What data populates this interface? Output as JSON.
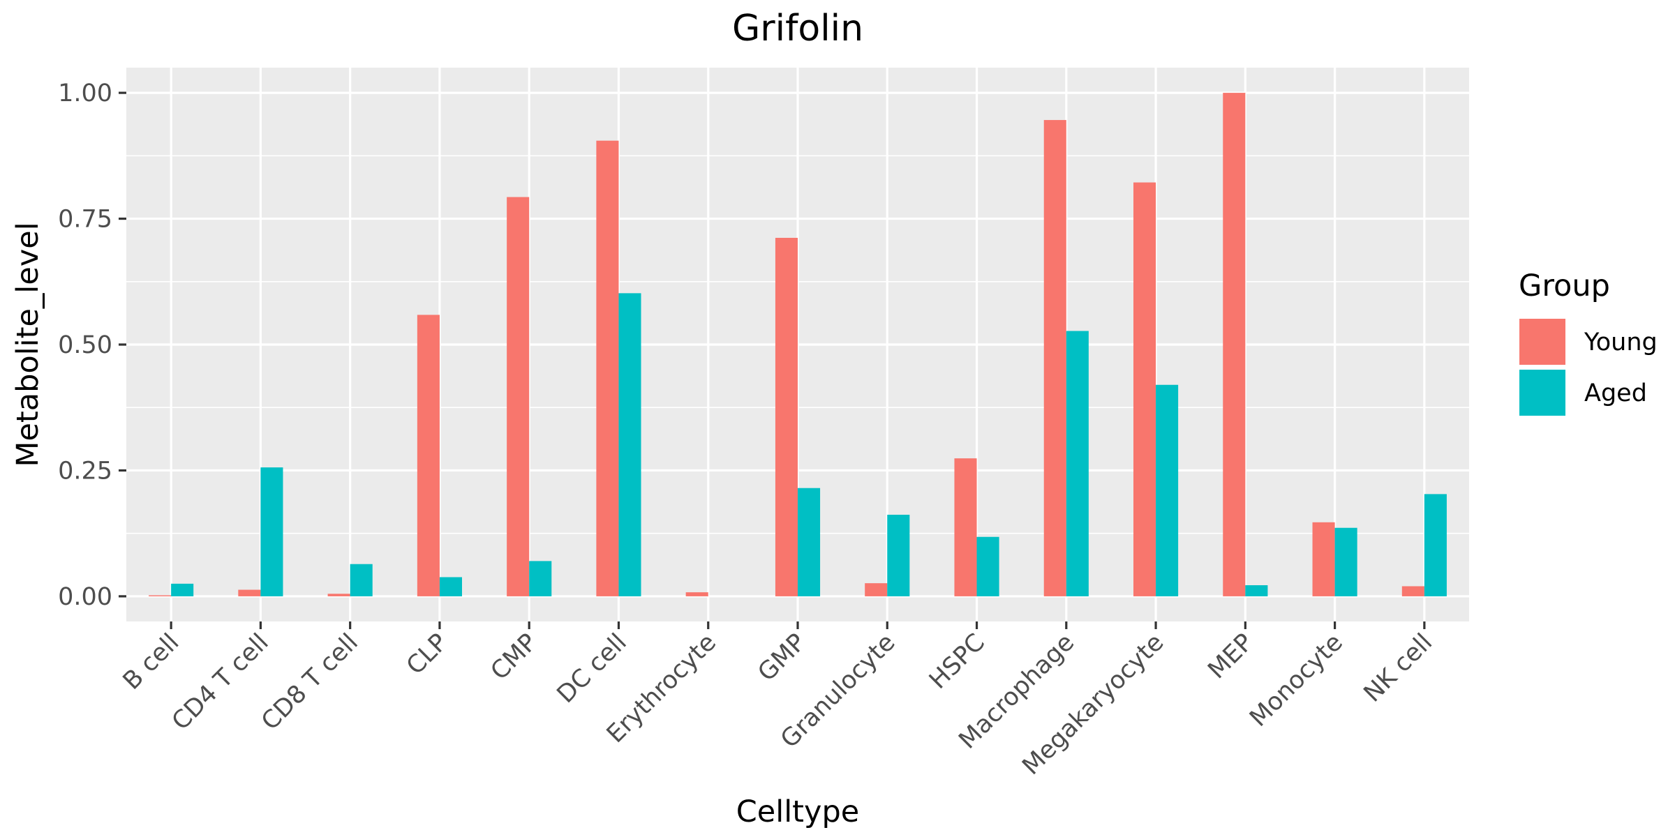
{
  "chart_data": {
    "type": "bar",
    "title": "Grifolin",
    "xlabel": "Celltype",
    "ylabel": "Metabolite_level",
    "ylim": [
      -0.05,
      1.05
    ],
    "yticks": [
      0.0,
      0.25,
      0.5,
      0.75,
      1.0
    ],
    "ytick_labels": [
      "0.00",
      "0.25",
      "0.50",
      "0.75",
      "1.00"
    ],
    "categories": [
      "B cell",
      "CD4 T cell",
      "CD8 T cell",
      "CLP",
      "CMP",
      "DC cell",
      "Erythrocyte",
      "GMP",
      "Granulocyte",
      "HSPC",
      "Macrophage",
      "Megakaryocyte",
      "MEP",
      "Monocyte",
      "NK cell"
    ],
    "series": [
      {
        "name": "Young",
        "color": "#F8766D",
        "values": [
          0.002,
          0.013,
          0.005,
          0.559,
          0.793,
          0.905,
          0.008,
          0.712,
          0.026,
          0.274,
          0.946,
          0.822,
          1.0,
          0.147,
          0.02
        ]
      },
      {
        "name": "Aged",
        "color": "#00BFC4",
        "values": [
          0.025,
          0.256,
          0.064,
          0.038,
          0.07,
          0.602,
          0.0,
          0.215,
          0.162,
          0.118,
          0.527,
          0.42,
          0.022,
          0.136,
          0.203
        ]
      }
    ],
    "legend": {
      "title": "Group",
      "position": "right"
    },
    "grid": true,
    "panel_background": "#EBEBEB"
  }
}
